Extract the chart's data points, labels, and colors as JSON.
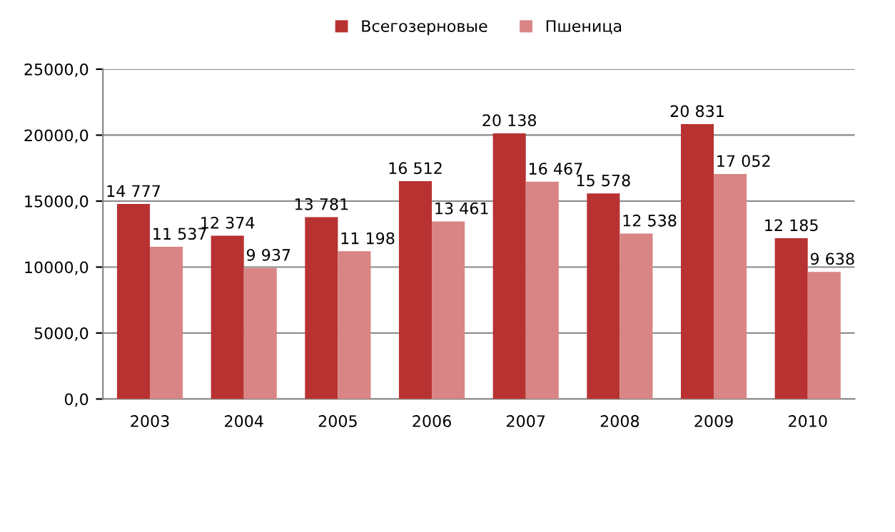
{
  "chart_data": {
    "type": "bar",
    "categories": [
      "2003",
      "2004",
      "2005",
      "2006",
      "2007",
      "2008",
      "2009",
      "2010"
    ],
    "series": [
      {
        "name": "Всегозерновые",
        "color": "#b83232",
        "values": [
          14777,
          12374,
          13781,
          16512,
          20138,
          15578,
          20831,
          12185
        ],
        "value_labels": [
          "14 777",
          "12 374",
          "13 781",
          "16 512",
          "20 138",
          "15 578",
          "20 831",
          "12 185"
        ]
      },
      {
        "name": "Пшеница",
        "color": "#d98585",
        "values": [
          11537,
          9937,
          11198,
          13461,
          16467,
          12538,
          17052,
          9638
        ],
        "value_labels": [
          "11 537",
          "9 937",
          "11 198",
          "13 461",
          "16 467",
          "12 538",
          "17 052",
          "9 638"
        ]
      }
    ],
    "ylim": [
      0,
      25000
    ],
    "yticks": [
      {
        "value": 0,
        "label": "0,0"
      },
      {
        "value": 5000,
        "label": "5000,0"
      },
      {
        "value": 10000,
        "label": "10000,0"
      },
      {
        "value": 15000,
        "label": "15000,0"
      },
      {
        "value": 20000,
        "label": "20000,0"
      },
      {
        "value": 25000,
        "label": "25000,0"
      }
    ],
    "grid": "y",
    "legend": "top"
  }
}
